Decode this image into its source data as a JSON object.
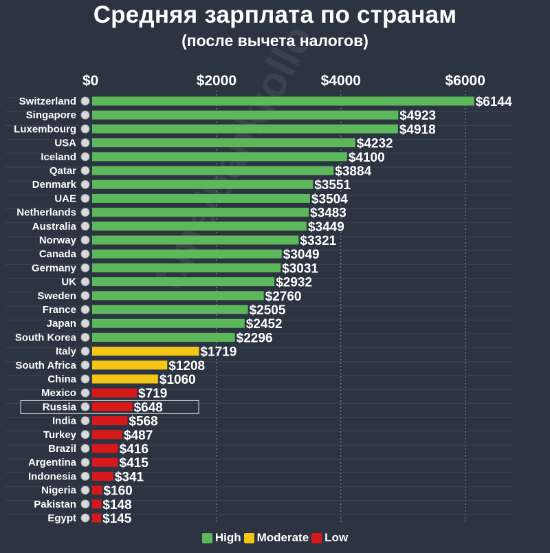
{
  "title": "Средняя зарплата по странам",
  "subtitle": "(после вычета налогов)",
  "watermark": "t.me/bankrollo",
  "colors": {
    "background": "#2c3441",
    "High": "#5cb85a",
    "Moderate": "#f5c518",
    "Low": "#d7191c"
  },
  "legend": [
    {
      "label": "High",
      "color": "#5cb85a"
    },
    {
      "label": "Moderate",
      "color": "#f5c518"
    },
    {
      "label": "Low",
      "color": "#d7191c"
    }
  ],
  "chart_data": {
    "type": "bar",
    "orientation": "horizontal",
    "xlim": [
      0,
      6600
    ],
    "xticks": [
      0,
      2000,
      4000,
      6000
    ],
    "tick_labels": [
      "$0",
      "$2000",
      "$4000",
      "$6000"
    ],
    "grid": true,
    "legend_position": "bottom",
    "highlighted": "Russia",
    "bars": [
      {
        "country": "Switzerland",
        "value": 6144,
        "label": "$6144",
        "group": "High"
      },
      {
        "country": "Singapore",
        "value": 4923,
        "label": "$4923",
        "group": "High"
      },
      {
        "country": "Luxembourg",
        "value": 4918,
        "label": "$4918",
        "group": "High"
      },
      {
        "country": "USA",
        "value": 4232,
        "label": "$4232",
        "group": "High"
      },
      {
        "country": "Iceland",
        "value": 4100,
        "label": "$4100",
        "group": "High"
      },
      {
        "country": "Qatar",
        "value": 3884,
        "label": "$3884",
        "group": "High"
      },
      {
        "country": "Denmark",
        "value": 3551,
        "label": "$3551",
        "group": "High"
      },
      {
        "country": "UAE",
        "value": 3504,
        "label": "$3504",
        "group": "High"
      },
      {
        "country": "Netherlands",
        "value": 3483,
        "label": "$3483",
        "group": "High"
      },
      {
        "country": "Australia",
        "value": 3449,
        "label": "$3449",
        "group": "High"
      },
      {
        "country": "Norway",
        "value": 3321,
        "label": "$3321",
        "group": "High"
      },
      {
        "country": "Canada",
        "value": 3049,
        "label": "$3049",
        "group": "High"
      },
      {
        "country": "Germany",
        "value": 3031,
        "label": "$3031",
        "group": "High"
      },
      {
        "country": "UK",
        "value": 2932,
        "label": "$2932",
        "group": "High"
      },
      {
        "country": "Sweden",
        "value": 2760,
        "label": "$2760",
        "group": "High"
      },
      {
        "country": "France",
        "value": 2505,
        "label": "$2505",
        "group": "High"
      },
      {
        "country": "Japan",
        "value": 2452,
        "label": "$2452",
        "group": "High"
      },
      {
        "country": "South Korea",
        "value": 2296,
        "label": "$2296",
        "group": "High"
      },
      {
        "country": "Italy",
        "value": 1719,
        "label": "$1719",
        "group": "Moderate"
      },
      {
        "country": "South Africa",
        "value": 1208,
        "label": "$1208",
        "group": "Moderate"
      },
      {
        "country": "China",
        "value": 1060,
        "label": "$1060",
        "group": "Moderate"
      },
      {
        "country": "Mexico",
        "value": 719,
        "label": "$719",
        "group": "Low"
      },
      {
        "country": "Russia",
        "value": 648,
        "label": "$648",
        "group": "Low"
      },
      {
        "country": "India",
        "value": 568,
        "label": "$568",
        "group": "Low"
      },
      {
        "country": "Turkey",
        "value": 487,
        "label": "$487",
        "group": "Low"
      },
      {
        "country": "Brazil",
        "value": 416,
        "label": "$416",
        "group": "Low"
      },
      {
        "country": "Argentina",
        "value": 415,
        "label": "$415",
        "group": "Low"
      },
      {
        "country": "Indonesia",
        "value": 341,
        "label": "$341",
        "group": "Low"
      },
      {
        "country": "Nigeria",
        "value": 160,
        "label": "$160",
        "group": "Low"
      },
      {
        "country": "Pakistan",
        "value": 148,
        "label": "$148",
        "group": "Low"
      },
      {
        "country": "Egypt",
        "value": 145,
        "label": "$145",
        "group": "Low"
      }
    ]
  }
}
